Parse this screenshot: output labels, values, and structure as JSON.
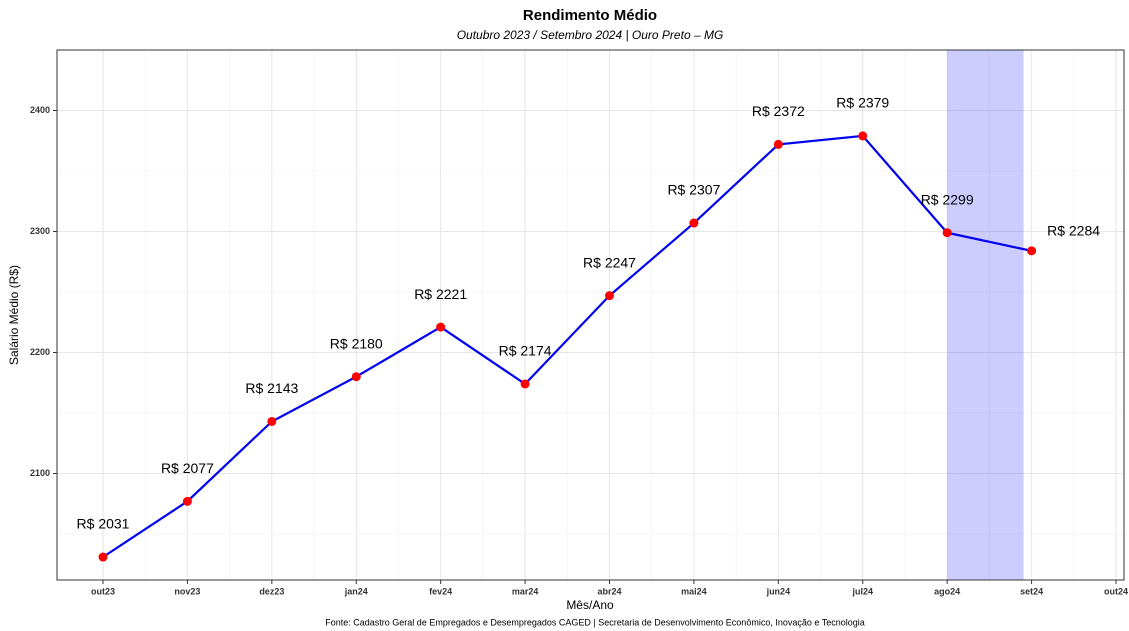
{
  "chart_data": {
    "type": "line",
    "title": "Rendimento Médio",
    "subtitle": "Outubro 2023 / Setembro 2024 | Ouro Preto – MG",
    "x_label": "Mês/Ano",
    "y_label": "Salário Médio (R$)",
    "caption": "Fonte: Cadastro Geral de Empregados e Desempregados CAGED | Secretaria de Desenvolvimento Econômico, Inovação e Tecnologia",
    "categories": [
      "out23",
      "nov23",
      "dez23",
      "jan24",
      "fev24",
      "mar24",
      "abr24",
      "mai24",
      "jun24",
      "jul24",
      "ago24",
      "set24",
      "out24"
    ],
    "series": [
      {
        "name": "Rendimento",
        "color": "#0000ee",
        "marker_color": "#ff0000",
        "values": [
          2031,
          2077,
          2143,
          2180,
          2221,
          2174,
          2247,
          2307,
          2372,
          2379,
          2299,
          2284,
          null
        ],
        "value_labels": [
          "R$ 2031",
          "R$ 2077",
          "R$ 2143",
          "R$ 2180",
          "R$ 2221",
          "R$ 2174",
          "R$ 2247",
          "R$ 2307",
          "R$ 2372",
          "R$ 2379",
          "R$ 2299",
          "R$ 2284",
          null
        ]
      }
    ],
    "highlight_range": [
      "ago24",
      "set24"
    ],
    "highlight_color": "#0000ff",
    "ylim": [
      2012,
      2450
    ],
    "yticks": [
      2100,
      2200,
      2300,
      2400
    ],
    "grid": true
  }
}
